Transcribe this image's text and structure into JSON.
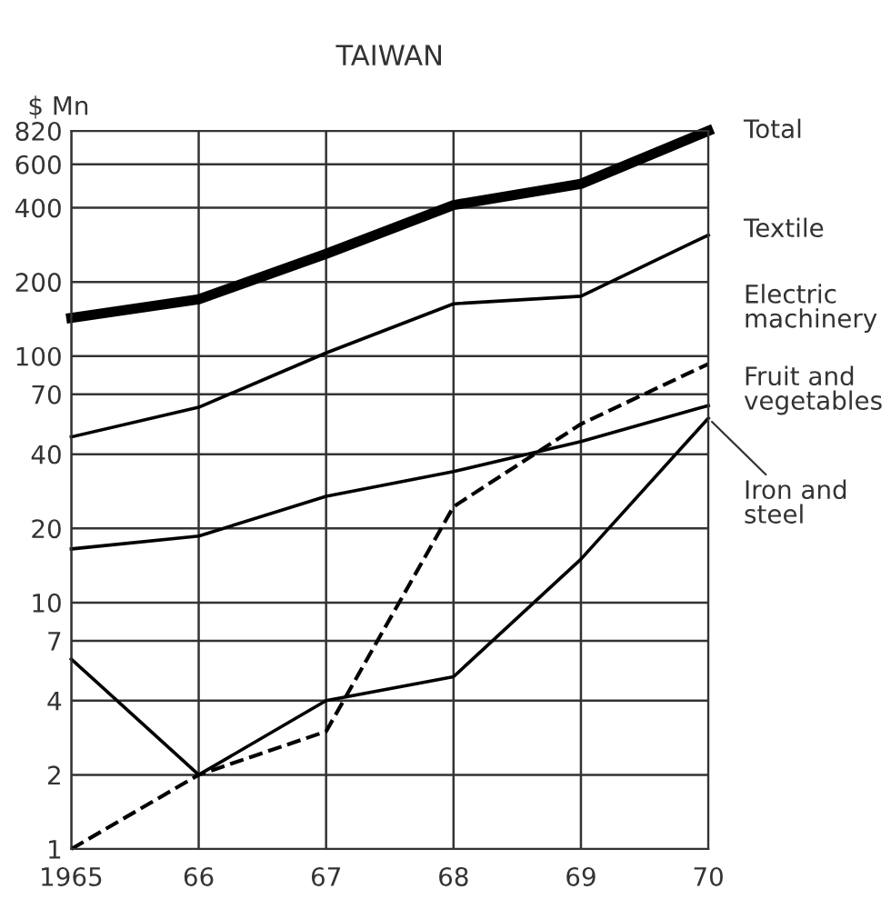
{
  "chart_data": {
    "type": "line",
    "title": "TAIWAN",
    "ylabel": "$ Mn",
    "x": [
      1965,
      1966,
      1967,
      1968,
      1969,
      1970
    ],
    "series": [
      {
        "name": "Total",
        "color": "#000000",
        "values": [
          143,
          170,
          260,
          410,
          500,
          820
        ]
      },
      {
        "name": "Textile",
        "color": "#000000",
        "values": [
          47,
          62,
          103,
          163,
          175,
          310
        ]
      },
      {
        "name": "Electric\nmachinery",
        "color": "#000000",
        "line_style": "dashed",
        "values": [
          1,
          2,
          3,
          24.5,
          53,
          93
        ]
      },
      {
        "name": "Fruit and\nvegetables",
        "color": "#000000",
        "values": [
          16.5,
          18.6,
          27,
          34,
          45,
          63
        ]
      },
      {
        "name": "Iron and\nsteel",
        "color": "#000000",
        "values": [
          5.9,
          2,
          4,
          5,
          15,
          56
        ]
      }
    ],
    "log": "y",
    "xlim": [
      1965,
      1970
    ],
    "ylim": [
      1,
      820
    ],
    "xticks": [
      1965,
      {
        "value": 1966,
        "label": "66"
      },
      {
        "value": 1967,
        "label": "67"
      },
      {
        "value": 1968,
        "label": "68"
      },
      {
        "value": 1969,
        "label": "69"
      },
      {
        "value": 1970,
        "label": "70"
      }
    ],
    "yticks": [
      1,
      2,
      4,
      7,
      10,
      20,
      40,
      70,
      100,
      200,
      400,
      600,
      820
    ],
    "grid": true,
    "line_style": "solid",
    "marker": "none",
    "legend": "right"
  }
}
